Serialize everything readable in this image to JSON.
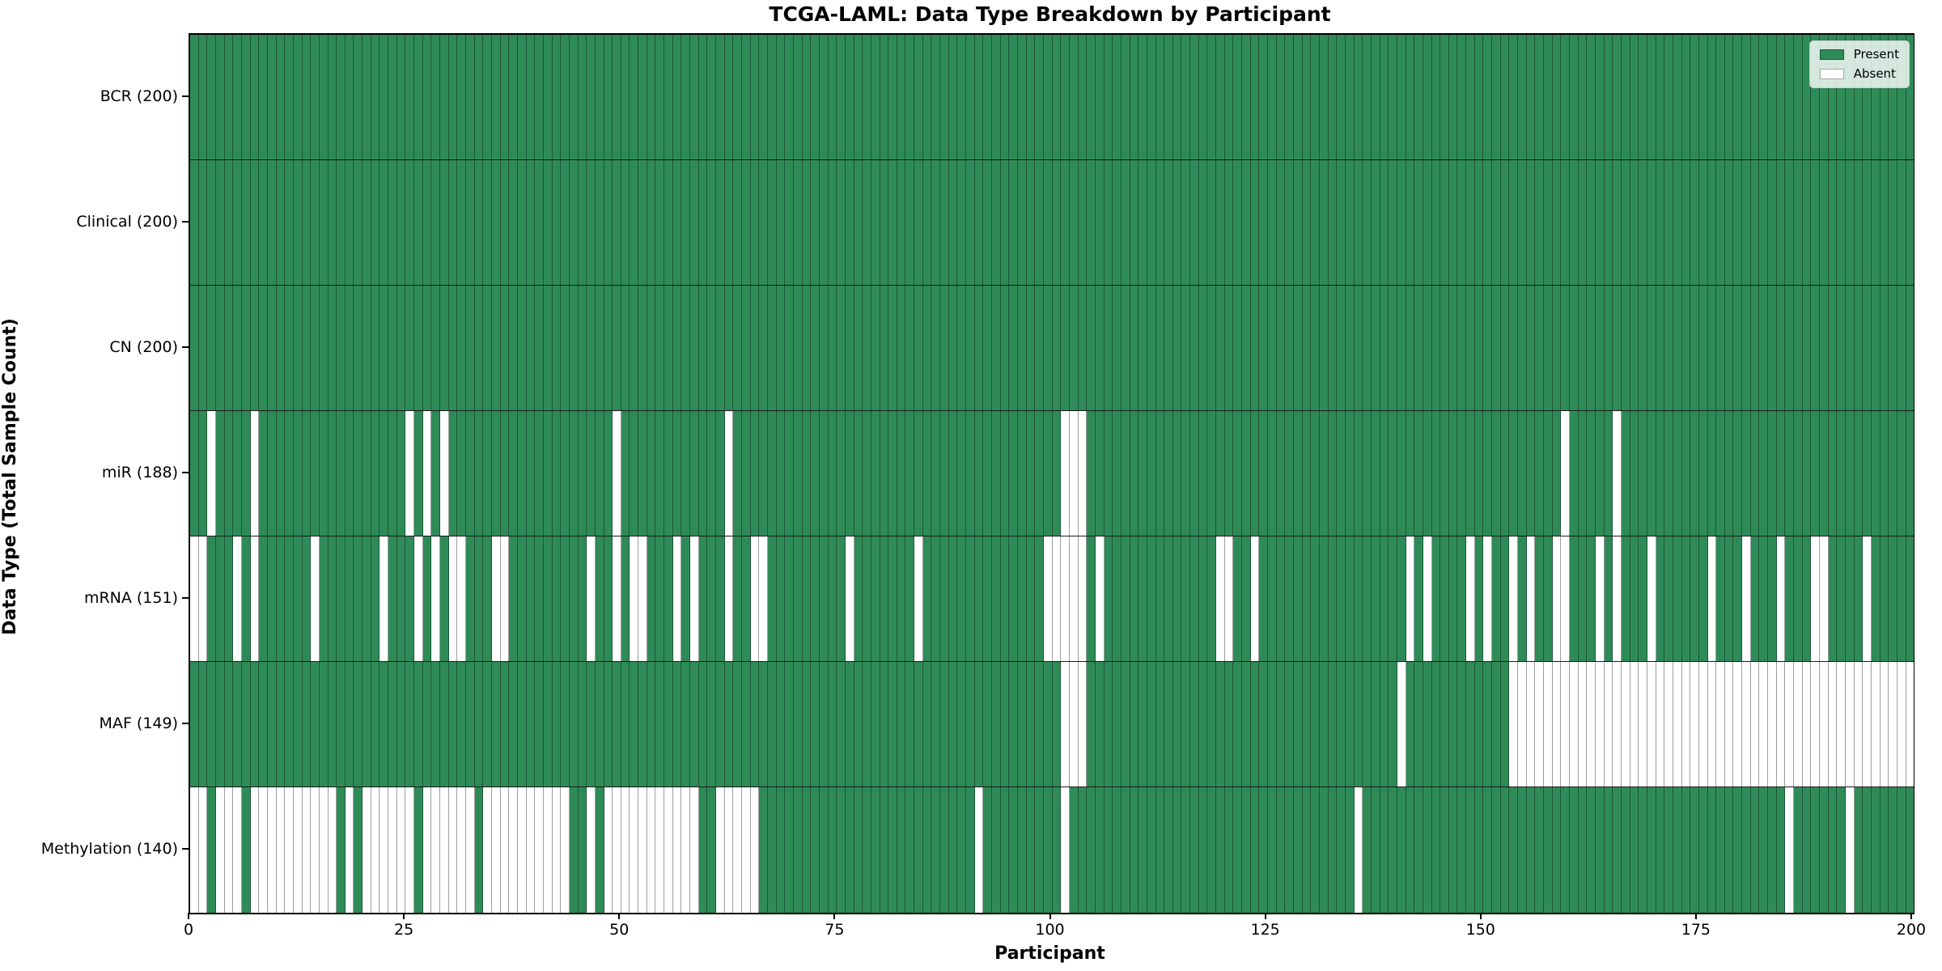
{
  "chart_data": {
    "type": "heatmap",
    "title": "TCGA-LAML: Data Type Breakdown by Participant",
    "xlabel": "Participant",
    "ylabel": "Data Type (Total Sample Count)",
    "n_participants": 200,
    "x_min": 0,
    "x_max": 200,
    "x_ticks": [
      0,
      25,
      50,
      75,
      100,
      125,
      150,
      175,
      200
    ],
    "grid": false,
    "colors": {
      "present": "#2e8b57",
      "absent": "#ffffff",
      "cell_edge": "rgba(0,0,0,0.38)",
      "row_separator": "#1a1a1a",
      "axis": "#000000"
    },
    "legend": {
      "position": "upper right",
      "items": [
        {
          "label": "Present",
          "color_key": "present"
        },
        {
          "label": "Absent",
          "color_key": "absent"
        }
      ]
    },
    "rows": [
      {
        "name": "BCR",
        "label": "BCR (200)",
        "present_count": 200,
        "absent": []
      },
      {
        "name": "Clinical",
        "label": "Clinical (200)",
        "present_count": 200,
        "absent": []
      },
      {
        "name": "CN",
        "label": "CN (200)",
        "present_count": 200,
        "absent": []
      },
      {
        "name": "miR",
        "label": "miR (188)",
        "present_count": 188,
        "absent": [
          2,
          7,
          25,
          27,
          29,
          49,
          62,
          101,
          102,
          103,
          159,
          165
        ]
      },
      {
        "name": "mRNA",
        "label": "mRNA (151)",
        "present_count": 151,
        "absent": [
          0,
          1,
          5,
          7,
          14,
          22,
          26,
          28,
          30,
          31,
          35,
          36,
          46,
          49,
          51,
          52,
          56,
          58,
          62,
          65,
          66,
          76,
          84,
          99,
          100,
          101,
          102,
          103,
          105,
          119,
          120,
          123,
          141,
          143,
          148,
          150,
          153,
          155,
          158,
          159,
          163,
          165,
          169,
          176,
          180,
          184,
          188,
          189,
          194
        ]
      },
      {
        "name": "MAF",
        "label": "MAF (149)",
        "present_count": 149,
        "absent": [
          101,
          102,
          103,
          140,
          153,
          154,
          155,
          156,
          157,
          158,
          159,
          160,
          161,
          162,
          163,
          164,
          165,
          166,
          167,
          168,
          169,
          170,
          171,
          172,
          173,
          174,
          175,
          176,
          177,
          178,
          179,
          180,
          181,
          182,
          183,
          184,
          185,
          186,
          187,
          188,
          189,
          190,
          191,
          192,
          193,
          194,
          195,
          196,
          197,
          198,
          199
        ]
      },
      {
        "name": "Methylation",
        "label": "Methylation (140)",
        "present_count": 140,
        "absent": [
          0,
          1,
          3,
          4,
          5,
          7,
          8,
          9,
          10,
          11,
          12,
          13,
          14,
          15,
          16,
          18,
          20,
          21,
          22,
          23,
          24,
          25,
          27,
          28,
          29,
          30,
          31,
          32,
          34,
          35,
          36,
          37,
          38,
          39,
          40,
          41,
          42,
          43,
          46,
          48,
          49,
          50,
          51,
          52,
          53,
          54,
          55,
          56,
          57,
          58,
          61,
          62,
          63,
          64,
          65,
          91,
          101,
          135,
          185,
          192
        ]
      }
    ]
  }
}
